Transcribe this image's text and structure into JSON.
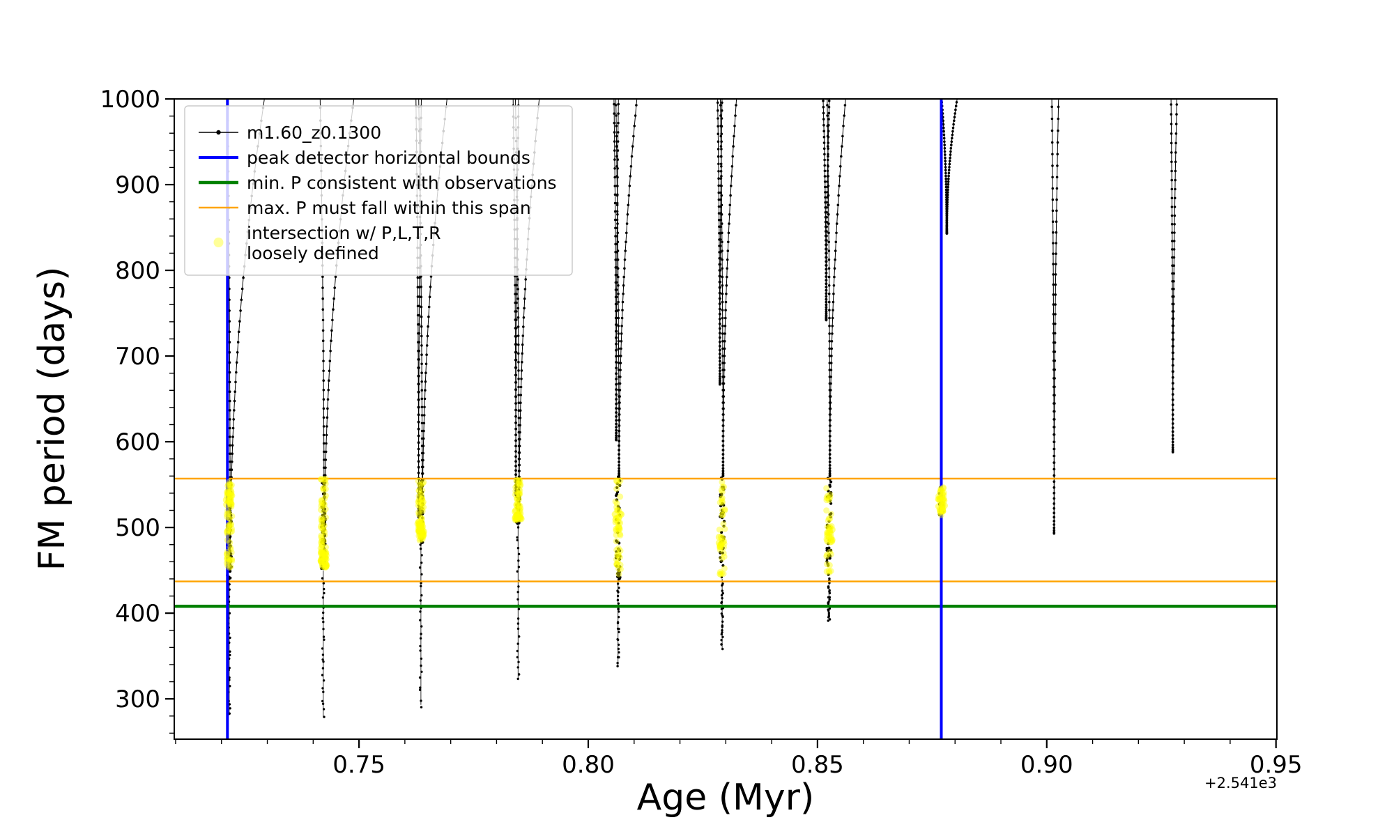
{
  "chart_data": {
    "type": "line",
    "title": "",
    "xlabel": "Age (Myr)",
    "ylabel": "FM period (days)",
    "x_offset_text": "+2.541e3",
    "xlim": [
      0.7097,
      0.9502
    ],
    "ylim": [
      253,
      1000
    ],
    "x_major_ticks": [
      0.75,
      0.8,
      0.85,
      0.9,
      0.95
    ],
    "x_major_labels": [
      "0.75",
      "0.80",
      "0.85",
      "0.90",
      "0.95"
    ],
    "x_minor_step": 0.01,
    "y_major_ticks": [
      300,
      400,
      500,
      600,
      700,
      800,
      900,
      1000
    ],
    "y_minor_step": 20,
    "grid": false,
    "colors": {
      "series": "#000000",
      "peak_bounds": "#0000ff",
      "min_p": "#008000",
      "max_p_span": "#ffa500",
      "intersection": "#ffff00"
    },
    "legend": {
      "position": "upper-left",
      "entries": [
        {
          "id": "series",
          "lines": [
            "m1.60_z0.1300"
          ],
          "type": "line-marker",
          "color": "#000000",
          "linewidth": 1.5
        },
        {
          "id": "peak-bounds",
          "lines": [
            "peak detector horizontal bounds"
          ],
          "type": "line",
          "color": "#0000ff",
          "linewidth": 4
        },
        {
          "id": "min-p",
          "lines": [
            "min. P consistent with observations"
          ],
          "type": "line",
          "color": "#008000",
          "linewidth": 4.5
        },
        {
          "id": "max-p-span",
          "lines": [
            "max. P must fall within this span"
          ],
          "type": "line",
          "color": "#ffa500",
          "linewidth": 2.5
        },
        {
          "id": "intersection",
          "lines": [
            "intersection w/ P,L,T,R",
            "loosely defined"
          ],
          "type": "marker",
          "color": "#ffff00",
          "alpha": 0.4
        }
      ]
    },
    "vlines": {
      "name": "peak detector horizontal bounds",
      "color": "#0000ff",
      "x": [
        0.7213,
        0.877
      ],
      "linewidth": 4
    },
    "hlines": [
      {
        "name": "min. P consistent with observations",
        "y": 408,
        "color": "#008000",
        "linewidth": 4.5
      },
      {
        "name": "max. P span upper",
        "y": 557,
        "color": "#ffa500",
        "linewidth": 2.5
      },
      {
        "name": "max. P span lower",
        "y": 437,
        "color": "#ffa500",
        "linewidth": 2.5
      }
    ],
    "series_name": "m1.60_z0.1300",
    "spikes": [
      {
        "x": 0.7217,
        "vees": [
          {
            "dx": 0.0002,
            "ymin": 452,
            "wl": 0.0006,
            "wr": 0.0076
          }
        ],
        "cluster": {
          "lo": 440,
          "hi": 557,
          "n": 75
        },
        "tail_min": 281,
        "yellow": {
          "lo": 452,
          "hi": 557,
          "n": 60,
          "blob_y": 533,
          "blob_n": 16
        }
      },
      {
        "x": 0.7422,
        "vees": [
          {
            "dx": 0.0002,
            "ymin": 455,
            "wl": 0.0009,
            "wr": 0.0066
          }
        ],
        "cluster": {
          "lo": 450,
          "hi": 557,
          "n": 75
        },
        "tail_min": 279,
        "yellow": {
          "lo": 452,
          "hi": 557,
          "n": 60,
          "blob_y": 463,
          "blob_n": 22
        }
      },
      {
        "x": 0.7635,
        "vees": [
          {
            "dx": -0.0005,
            "ymin": 512,
            "wl": 0.0006,
            "wr": 0.0006
          },
          {
            "dx": 0.0003,
            "ymin": 487,
            "wl": 0.0008,
            "wr": 0.0055
          }
        ],
        "cluster": {
          "lo": 482,
          "hi": 557,
          "n": 65
        },
        "tail_min": 293,
        "yellow": {
          "lo": 483,
          "hi": 557,
          "n": 55,
          "blob_y": 497,
          "blob_n": 22
        }
      },
      {
        "x": 0.7847,
        "vees": [
          {
            "dx": -0.0005,
            "ymin": 540,
            "wl": 0.0006,
            "wr": 0.0006
          },
          {
            "dx": 0.0002,
            "ymin": 507,
            "wl": 0.0008,
            "wr": 0.0045
          }
        ],
        "cluster": {
          "lo": 505,
          "hi": 557,
          "n": 55
        },
        "tail_min": 322,
        "yellow": {
          "lo": 506,
          "hi": 556,
          "n": 45,
          "blob_y": 517,
          "blob_n": 14
        }
      },
      {
        "x": 0.8065,
        "vees": [
          {
            "dx": -0.0004,
            "ymin": 602,
            "wl": 0.0005,
            "wr": 0.0005
          },
          {
            "dx": 0.0002,
            "ymin": 560,
            "wl": 0.0007,
            "wr": 0.004
          }
        ],
        "cluster": {
          "lo": 440,
          "hi": 560,
          "n": 45
        },
        "tail_min": 339,
        "yellow": {
          "lo": 442,
          "hi": 556,
          "n": 38,
          "blob_y": 507,
          "blob_n": 10
        }
      },
      {
        "x": 0.8292,
        "vees": [
          {
            "dx": -0.0005,
            "ymin": 667,
            "wl": 0.0005,
            "wr": 0.0005
          },
          {
            "dx": 0.0002,
            "ymin": 560,
            "wl": 0.0006,
            "wr": 0.003
          }
        ],
        "cluster": {
          "lo": 440,
          "hi": 560,
          "n": 40
        },
        "tail_min": 358,
        "yellow": {
          "lo": 445,
          "hi": 555,
          "n": 34,
          "blob_y": 480,
          "blob_n": 8
        }
      },
      {
        "x": 0.8525,
        "vees": [
          {
            "dx": -0.0006,
            "ymin": 742,
            "wl": 0.0007,
            "wr": 0.0007
          },
          {
            "dx": 0.0002,
            "ymin": 560,
            "wl": 0.0006,
            "wr": 0.0035
          }
        ],
        "cluster": {
          "lo": 440,
          "hi": 560,
          "n": 40
        },
        "tail_min": 391,
        "yellow": {
          "lo": 445,
          "hi": 548,
          "n": 34,
          "blob_y": 492,
          "blob_n": 10
        }
      },
      {
        "x": 0.8782,
        "vees": [
          {
            "dx": 0,
            "ymin": 843,
            "wl": 0.0012,
            "wr": 0.0024
          }
        ],
        "cluster": {
          "lo": 510,
          "hi": 548,
          "n": 28,
          "dx": -0.0012
        },
        "tail_min": null,
        "yellow": {
          "lo": 512,
          "hi": 548,
          "n": 30,
          "blob_y": 528,
          "blob_n": 12,
          "dx": -0.0012
        }
      },
      {
        "x": 0.9016,
        "vees": [
          {
            "dx": 0,
            "ymin": 493,
            "wl": 0.0005,
            "wr": 0.001
          }
        ],
        "cluster": null,
        "tail_min": null,
        "yellow": null
      },
      {
        "x": 0.9275,
        "vees": [
          {
            "dx": 0,
            "ymin": 588,
            "wl": 0.0004,
            "wr": 0.0009
          }
        ],
        "cluster": null,
        "tail_min": null,
        "yellow": null
      }
    ]
  }
}
